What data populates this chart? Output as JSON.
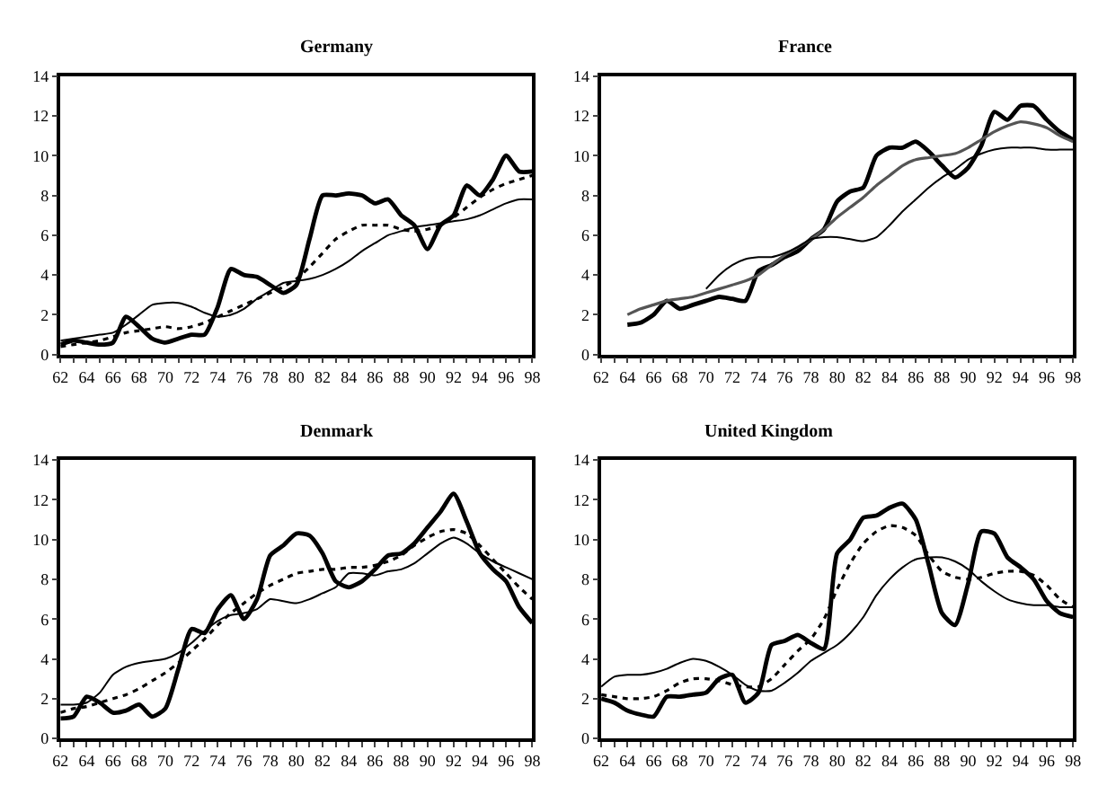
{
  "chart_data": [
    {
      "type": "line",
      "title": "Germany",
      "x": [
        62,
        63,
        64,
        65,
        66,
        67,
        68,
        69,
        70,
        71,
        72,
        73,
        74,
        75,
        76,
        77,
        78,
        79,
        80,
        81,
        82,
        83,
        84,
        85,
        86,
        87,
        88,
        89,
        90,
        91,
        92,
        93,
        94,
        95,
        96,
        97,
        98
      ],
      "xlim": [
        62,
        98
      ],
      "ylim": [
        0,
        14
      ],
      "yticks": [
        0,
        2,
        4,
        6,
        8,
        10,
        12,
        14
      ],
      "xticks": [
        62,
        {
          "value": 63,
          "label": null
        },
        64,
        {
          "value": 65,
          "label": null
        },
        66,
        {
          "value": 67,
          "label": null
        },
        68,
        {
          "value": 69,
          "label": null
        },
        70,
        {
          "value": 71,
          "label": null
        },
        72,
        {
          "value": 73,
          "label": null
        },
        74,
        {
          "value": 75,
          "label": null
        },
        76,
        {
          "value": 77,
          "label": null
        },
        78,
        {
          "value": 79,
          "label": null
        },
        80,
        {
          "value": 81,
          "label": null
        },
        82,
        {
          "value": 83,
          "label": null
        },
        84,
        {
          "value": 85,
          "label": null
        },
        86,
        {
          "value": 87,
          "label": null
        },
        88,
        {
          "value": 89,
          "label": null
        },
        90,
        {
          "value": 91,
          "label": null
        },
        92,
        {
          "value": 93,
          "label": null
        },
        94,
        {
          "value": 95,
          "label": null
        },
        96,
        {
          "value": 97,
          "label": null
        },
        98
      ],
      "series": [
        {
          "color": "#000000",
          "line_style": "solid",
          "values": [
            0.5,
            0.7,
            0.6,
            0.5,
            0.6,
            1.9,
            1.4,
            0.8,
            0.6,
            0.8,
            1.0,
            1.0,
            2.4,
            4.3,
            4.0,
            3.9,
            3.5,
            3.1,
            3.5,
            5.8,
            8.0,
            8.0,
            8.1,
            8.0,
            7.6,
            7.8,
            7.0,
            6.5,
            5.3,
            6.5,
            7.0,
            8.5,
            8.0,
            8.8,
            10.0,
            9.2,
            9.2
          ]
        },
        {
          "color": "#000000",
          "line_style": "dotted",
          "values": [
            0.4,
            0.5,
            0.6,
            0.7,
            0.9,
            1.1,
            1.2,
            1.3,
            1.4,
            1.3,
            1.4,
            1.6,
            1.9,
            2.2,
            2.5,
            2.8,
            3.1,
            3.4,
            3.8,
            4.4,
            5.1,
            5.8,
            6.2,
            6.5,
            6.5,
            6.5,
            6.3,
            6.2,
            6.3,
            6.5,
            6.9,
            7.4,
            7.9,
            8.3,
            8.6,
            8.8,
            9.0
          ]
        },
        {
          "color": "#000000",
          "line_style": "solid",
          "values": [
            0.7,
            0.8,
            0.9,
            1.0,
            1.1,
            1.5,
            2.0,
            2.5,
            2.6,
            2.6,
            2.4,
            2.1,
            1.9,
            2.0,
            2.3,
            2.8,
            3.2,
            3.6,
            3.7,
            3.8,
            4.0,
            4.3,
            4.7,
            5.2,
            5.6,
            6.0,
            6.2,
            6.4,
            6.5,
            6.6,
            6.7,
            6.8,
            7.0,
            7.3,
            7.6,
            7.8,
            7.8
          ]
        }
      ]
    },
    {
      "type": "line",
      "title": "France",
      "xlim": [
        62,
        98
      ],
      "ylim": [
        0,
        14
      ],
      "yticks": [
        0,
        2,
        4,
        6,
        8,
        10,
        12,
        14
      ],
      "xticks": [
        62,
        {
          "value": 63,
          "label": null
        },
        64,
        {
          "value": 65,
          "label": null
        },
        66,
        {
          "value": 67,
          "label": null
        },
        68,
        {
          "value": 69,
          "label": null
        },
        70,
        {
          "value": 71,
          "label": null
        },
        72,
        {
          "value": 73,
          "label": null
        },
        74,
        {
          "value": 75,
          "label": null
        },
        76,
        {
          "value": 77,
          "label": null
        },
        78,
        {
          "value": 79,
          "label": null
        },
        80,
        {
          "value": 81,
          "label": null
        },
        82,
        {
          "value": 83,
          "label": null
        },
        84,
        {
          "value": 85,
          "label": null
        },
        86,
        {
          "value": 87,
          "label": null
        },
        88,
        {
          "value": 89,
          "label": null
        },
        90,
        {
          "value": 91,
          "label": null
        },
        92,
        {
          "value": 93,
          "label": null
        },
        94,
        {
          "value": 95,
          "label": null
        },
        96,
        {
          "value": 97,
          "label": null
        },
        98
      ],
      "series": [
        {
          "color": "#000000",
          "line_style": "solid",
          "x": [
            64,
            65,
            66,
            67,
            68,
            69,
            70,
            71,
            72,
            73,
            74,
            75,
            76,
            77,
            78,
            79,
            80,
            81,
            82,
            83,
            84,
            85,
            86,
            87,
            88,
            89,
            90,
            91,
            92,
            93,
            94,
            95,
            96,
            97,
            98
          ],
          "values": [
            1.5,
            1.6,
            2.0,
            2.7,
            2.3,
            2.5,
            2.7,
            2.9,
            2.8,
            2.7,
            4.2,
            4.5,
            4.9,
            5.2,
            5.8,
            6.3,
            7.7,
            8.2,
            8.4,
            10.0,
            10.4,
            10.4,
            10.7,
            10.2,
            9.5,
            8.9,
            9.4,
            10.5,
            12.2,
            11.8,
            12.5,
            12.5,
            11.8,
            11.2,
            10.8
          ]
        },
        {
          "color": "#555555",
          "line_style": "solid",
          "x": [
            64,
            65,
            66,
            67,
            68,
            69,
            70,
            71,
            72,
            73,
            74,
            75,
            76,
            77,
            78,
            79,
            80,
            81,
            82,
            83,
            84,
            85,
            86,
            87,
            88,
            89,
            90,
            91,
            92,
            93,
            94,
            95,
            96,
            97,
            98
          ],
          "values": [
            2.0,
            2.3,
            2.5,
            2.7,
            2.8,
            2.9,
            3.1,
            3.3,
            3.5,
            3.7,
            4.0,
            4.5,
            5.0,
            5.4,
            5.8,
            6.3,
            6.9,
            7.4,
            7.9,
            8.5,
            9.0,
            9.5,
            9.8,
            9.9,
            10.0,
            10.1,
            10.4,
            10.8,
            11.2,
            11.5,
            11.7,
            11.6,
            11.4,
            11.0,
            10.7
          ]
        },
        {
          "color": "#000000",
          "line_style": "solid",
          "x": [
            70,
            71,
            72,
            73,
            74,
            75,
            76,
            77,
            78,
            79,
            80,
            81,
            82,
            83,
            84,
            85,
            86,
            87,
            88,
            89,
            90,
            91,
            92,
            93,
            94,
            95,
            96,
            97,
            98
          ],
          "values": [
            3.3,
            4.0,
            4.5,
            4.8,
            4.9,
            4.9,
            5.1,
            5.4,
            5.8,
            5.9,
            5.9,
            5.8,
            5.7,
            5.9,
            6.5,
            7.2,
            7.8,
            8.4,
            8.9,
            9.3,
            9.8,
            10.1,
            10.3,
            10.4,
            10.4,
            10.4,
            10.3,
            10.3,
            10.3
          ]
        }
      ]
    },
    {
      "type": "line",
      "title": "Denmark",
      "x": [
        62,
        63,
        64,
        65,
        66,
        67,
        68,
        69,
        70,
        71,
        72,
        73,
        74,
        75,
        76,
        77,
        78,
        79,
        80,
        81,
        82,
        83,
        84,
        85,
        86,
        87,
        88,
        89,
        90,
        91,
        92,
        93,
        94,
        95,
        96,
        97,
        98
      ],
      "xlim": [
        62,
        98
      ],
      "ylim": [
        0,
        14
      ],
      "yticks": [
        0,
        2,
        4,
        6,
        8,
        10,
        12,
        14
      ],
      "xticks": [
        62,
        {
          "value": 63,
          "label": null
        },
        64,
        {
          "value": 65,
          "label": null
        },
        66,
        {
          "value": 67,
          "label": null
        },
        68,
        {
          "value": 69,
          "label": null
        },
        70,
        {
          "value": 71,
          "label": null
        },
        72,
        {
          "value": 73,
          "label": null
        },
        74,
        {
          "value": 75,
          "label": null
        },
        76,
        {
          "value": 77,
          "label": null
        },
        78,
        {
          "value": 79,
          "label": null
        },
        80,
        {
          "value": 81,
          "label": null
        },
        82,
        {
          "value": 83,
          "label": null
        },
        84,
        {
          "value": 85,
          "label": null
        },
        86,
        {
          "value": 87,
          "label": null
        },
        88,
        {
          "value": 89,
          "label": null
        },
        90,
        {
          "value": 91,
          "label": null
        },
        92,
        {
          "value": 93,
          "label": null
        },
        94,
        {
          "value": 95,
          "label": null
        },
        96,
        {
          "value": 97,
          "label": null
        },
        98
      ],
      "series": [
        {
          "color": "#000000",
          "line_style": "solid",
          "values": [
            1.0,
            1.1,
            2.1,
            1.8,
            1.3,
            1.4,
            1.7,
            1.1,
            1.5,
            3.5,
            5.5,
            5.3,
            6.5,
            7.2,
            6.0,
            7.0,
            9.2,
            9.7,
            10.3,
            10.2,
            9.3,
            7.9,
            7.6,
            7.9,
            8.5,
            9.2,
            9.3,
            9.8,
            10.6,
            11.4,
            12.3,
            10.9,
            9.3,
            8.5,
            7.9,
            6.6,
            5.8
          ]
        },
        {
          "color": "#000000",
          "line_style": "dotted",
          "values": [
            1.3,
            1.5,
            1.6,
            1.8,
            2.0,
            2.2,
            2.5,
            2.9,
            3.3,
            3.8,
            4.4,
            5.0,
            5.7,
            6.3,
            6.8,
            7.3,
            7.7,
            8.0,
            8.3,
            8.4,
            8.5,
            8.5,
            8.6,
            8.6,
            8.7,
            8.9,
            9.2,
            9.7,
            10.1,
            10.4,
            10.5,
            10.3,
            9.7,
            9.0,
            8.3,
            7.6,
            7.0
          ]
        },
        {
          "color": "#000000",
          "line_style": "solid",
          "values": [
            1.7,
            1.7,
            1.8,
            2.3,
            3.2,
            3.6,
            3.8,
            3.9,
            4.0,
            4.3,
            4.8,
            5.4,
            5.9,
            6.2,
            6.3,
            6.5,
            7.0,
            6.9,
            6.8,
            7.0,
            7.3,
            7.6,
            8.3,
            8.3,
            8.2,
            8.4,
            8.5,
            8.8,
            9.3,
            9.8,
            10.1,
            9.8,
            9.3,
            8.9,
            8.6,
            8.3,
            8.0
          ]
        }
      ]
    },
    {
      "type": "line",
      "title": "United Kingdom",
      "x": [
        62,
        63,
        64,
        65,
        66,
        67,
        68,
        69,
        70,
        71,
        72,
        73,
        74,
        75,
        76,
        77,
        78,
        79,
        80,
        81,
        82,
        83,
        84,
        85,
        86,
        87,
        88,
        89,
        90,
        91,
        92,
        93,
        94,
        95,
        96,
        97,
        98
      ],
      "xlim": [
        62,
        98
      ],
      "ylim": [
        0,
        14
      ],
      "yticks": [
        0,
        2,
        4,
        6,
        8,
        10,
        12,
        14
      ],
      "xticks": [
        62,
        {
          "value": 63,
          "label": null
        },
        64,
        {
          "value": 65,
          "label": null
        },
        66,
        {
          "value": 67,
          "label": null
        },
        68,
        {
          "value": 69,
          "label": null
        },
        70,
        {
          "value": 71,
          "label": null
        },
        72,
        {
          "value": 73,
          "label": null
        },
        74,
        {
          "value": 75,
          "label": null
        },
        76,
        {
          "value": 77,
          "label": null
        },
        78,
        {
          "value": 79,
          "label": null
        },
        80,
        {
          "value": 81,
          "label": null
        },
        82,
        {
          "value": 83,
          "label": null
        },
        84,
        {
          "value": 85,
          "label": null
        },
        86,
        {
          "value": 87,
          "label": null
        },
        88,
        {
          "value": 89,
          "label": null
        },
        90,
        {
          "value": 91,
          "label": null
        },
        92,
        {
          "value": 93,
          "label": null
        },
        94,
        {
          "value": 95,
          "label": null
        },
        96,
        {
          "value": 97,
          "label": null
        },
        98
      ],
      "series": [
        {
          "color": "#000000",
          "line_style": "solid",
          "values": [
            2.0,
            1.8,
            1.4,
            1.2,
            1.1,
            2.1,
            2.1,
            2.2,
            2.3,
            3.0,
            3.2,
            1.8,
            2.3,
            4.7,
            4.9,
            5.2,
            4.8,
            4.5,
            9.3,
            10.0,
            11.1,
            11.2,
            11.6,
            11.8,
            11.0,
            8.7,
            6.3,
            5.7,
            7.8,
            10.4,
            10.3,
            9.1,
            8.6,
            8.0,
            6.9,
            6.3,
            6.1
          ]
        },
        {
          "color": "#000000",
          "line_style": "dotted",
          "values": [
            2.2,
            2.1,
            2.0,
            2.0,
            2.1,
            2.4,
            2.8,
            3.0,
            3.0,
            2.9,
            2.7,
            2.6,
            2.6,
            3.0,
            3.7,
            4.4,
            5.0,
            6.0,
            7.5,
            8.8,
            9.8,
            10.4,
            10.7,
            10.6,
            10.2,
            9.2,
            8.4,
            8.1,
            8.0,
            8.1,
            8.3,
            8.4,
            8.4,
            8.2,
            7.7,
            7.0,
            6.6
          ]
        },
        {
          "color": "#000000",
          "line_style": "solid",
          "values": [
            2.6,
            3.1,
            3.2,
            3.2,
            3.3,
            3.5,
            3.8,
            4.0,
            3.9,
            3.6,
            3.2,
            2.7,
            2.4,
            2.4,
            2.8,
            3.3,
            3.9,
            4.3,
            4.7,
            5.3,
            6.1,
            7.2,
            8.0,
            8.6,
            9.0,
            9.1,
            9.1,
            8.9,
            8.5,
            7.9,
            7.4,
            7.0,
            6.8,
            6.7,
            6.7,
            6.6,
            6.6
          ]
        }
      ]
    }
  ]
}
